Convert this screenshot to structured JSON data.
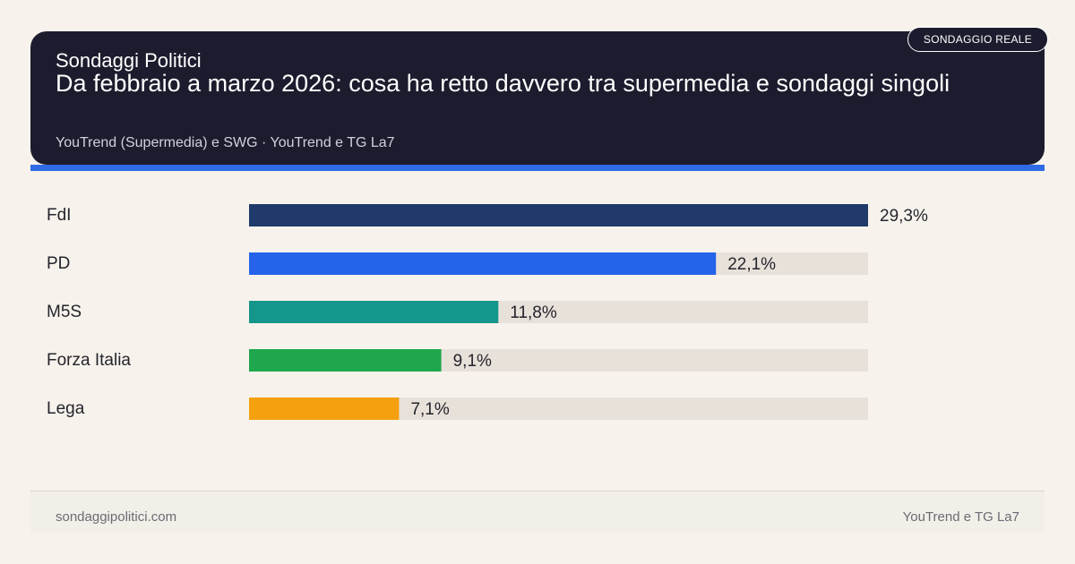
{
  "header": {
    "brand": "Sondaggi Politici",
    "headline": "Da febbraio a marzo 2026: cosa ha retto davvero tra supermedia e sondaggi singoli",
    "source": "YouTrend (Supermedia) e SWG · YouTrend e TG La7",
    "badge": "SONDAGGIO REALE"
  },
  "footer": {
    "site": "sondaggipolitici.com",
    "credit": "YouTrend e TG La7"
  },
  "chart_data": {
    "type": "bar",
    "orientation": "horizontal",
    "categories": [
      "FdI",
      "PD",
      "M5S",
      "Forza Italia",
      "Lega"
    ],
    "values": [
      29.3,
      22.1,
      11.8,
      9.1,
      7.1
    ],
    "value_labels": [
      "29,3%",
      "22,1%",
      "11,8%",
      "9,1%",
      "7,1%"
    ],
    "colors": [
      "#1f3a6b",
      "#2563eb",
      "#14968a",
      "#1ea74d",
      "#f5a00e"
    ],
    "track_color": "#e8e1da",
    "xlim": [
      0,
      29.3
    ],
    "grid": false,
    "legend": "none"
  }
}
